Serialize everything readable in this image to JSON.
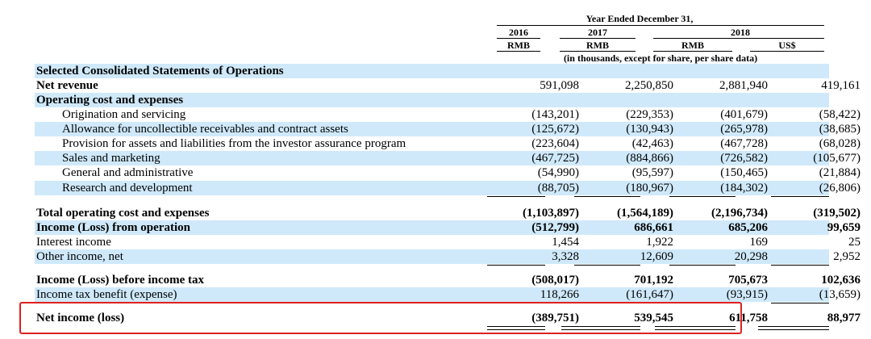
{
  "header": {
    "period": "Year Ended December 31,",
    "years": [
      "2016",
      "2017",
      "2018"
    ],
    "currencies": [
      "RMB",
      "RMB",
      "RMB",
      "US$"
    ],
    "note": "(in thousands, except for share, per share data)"
  },
  "rows": [
    {
      "label": "Selected Consolidated Statements of Operations",
      "bold": true,
      "values": [
        "",
        "",
        "",
        ""
      ]
    },
    {
      "label": "Net revenue",
      "bold": true,
      "values": [
        "591,098",
        "2,250,850",
        "2,881,940",
        "419,161"
      ]
    },
    {
      "label": "Operating cost and expenses",
      "bold": true,
      "values": [
        "",
        "",
        "",
        ""
      ]
    },
    {
      "label": "Origination and servicing",
      "values": [
        "(143,201)",
        "(229,353)",
        "(401,679)",
        "(58,422)"
      ]
    },
    {
      "label": "Allowance for uncollectible receivables and contract assets",
      "values": [
        "(125,672)",
        "(130,943)",
        "(265,978)",
        "(38,685)"
      ]
    },
    {
      "label": "Provision for assets and liabilities from the investor assurance program",
      "values": [
        "(223,604)",
        "(42,463)",
        "(467,728)",
        "(68,028)"
      ]
    },
    {
      "label": "Sales and marketing",
      "values": [
        "(467,725)",
        "(884,866)",
        "(726,582)",
        "(105,677)"
      ]
    },
    {
      "label": "General and administrative",
      "values": [
        "(54,990)",
        "(95,597)",
        "(150,465)",
        "(21,884)"
      ]
    },
    {
      "label": "Research and development",
      "values": [
        "(88,705)",
        "(180,967)",
        "(184,302)",
        "(26,806)"
      ]
    },
    {
      "label": "Total operating cost and expenses",
      "bold": true,
      "values": [
        "(1,103,897)",
        "(1,564,189)",
        "(2,196,734)",
        "(319,502)"
      ]
    },
    {
      "label": "Income (Loss) from operation",
      "bold": true,
      "values": [
        "(512,799)",
        "686,661",
        "685,206",
        "99,659"
      ]
    },
    {
      "label": "Interest income",
      "values": [
        "1,454",
        "1,922",
        "169",
        "25"
      ]
    },
    {
      "label": "Other income, net",
      "values": [
        "3,328",
        "12,609",
        "20,298",
        "2,952"
      ]
    },
    {
      "label": "Income (Loss) before income tax",
      "bold": true,
      "values": [
        "(508,017)",
        "701,192",
        "705,673",
        "102,636"
      ]
    },
    {
      "label": "Income tax benefit (expense)",
      "values": [
        "118,266",
        "(161,647)",
        "(93,915)",
        "(13,659)"
      ]
    },
    {
      "label": "Net income (loss)",
      "bold": true,
      "values": [
        "(389,751)",
        "539,545",
        "611,758",
        "88,977"
      ]
    }
  ],
  "highlight_color": "#e02020",
  "shade_color": "#cfe9fa"
}
